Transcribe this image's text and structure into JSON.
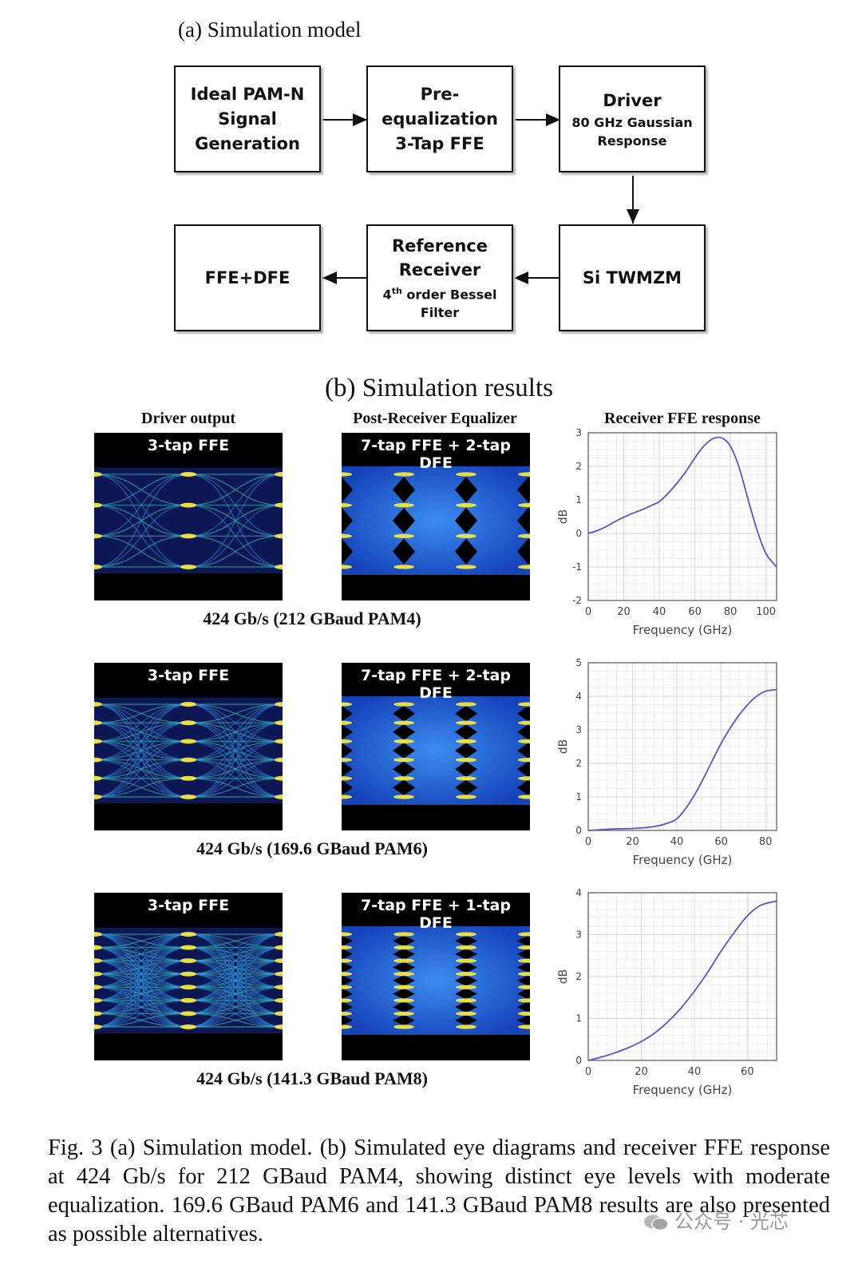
{
  "section_a": {
    "title": "(a) Simulation model",
    "blocks": {
      "pam": [
        "Ideal PAM-N",
        "Signal",
        "Generation"
      ],
      "preeq": [
        "Pre-",
        "equalization",
        "3-Tap FFE"
      ],
      "driver_title": "Driver",
      "driver_sub": [
        "80 GHz Gaussian",
        "Response"
      ],
      "twmzm": "Si TWMZM",
      "refrx_title": [
        "Reference",
        "Receiver"
      ],
      "refrx_order": "4",
      "refrx_sup": "th",
      "refrx_sub1": " order Bessel",
      "refrx_sub2": "Filter",
      "ffedfe": "FFE+DFE"
    }
  },
  "section_b": {
    "title": "(b) Simulation results",
    "col_heads": [
      "Driver output",
      "Post-Receiver Equalizer",
      "Receiver FFE response"
    ],
    "rows": [
      {
        "driver_label": "3-tap FFE",
        "eq_label": "7-tap FFE + 2-tap DFE",
        "caption": "424 Gb/s (212 GBaud PAM4)",
        "levels": 4
      },
      {
        "driver_label": "3-tap FFE",
        "eq_label": "7-tap FFE + 2-tap DFE",
        "caption": "424 Gb/s (169.6 GBaud PAM6)",
        "levels": 6
      },
      {
        "driver_label": "3-tap FFE",
        "eq_label": "7-tap FFE + 1-tap DFE",
        "caption": "424 Gb/s (141.3 GBaud PAM8)",
        "levels": 8
      }
    ]
  },
  "chart_data": [
    {
      "type": "line",
      "title": "Receiver FFE response",
      "xlabel": "Frequency (GHz)",
      "ylabel": "dB",
      "xlim": [
        0,
        106
      ],
      "ylim": [
        -2,
        3
      ],
      "xticks": [
        0,
        20,
        40,
        60,
        80,
        100
      ],
      "yticks": [
        -2,
        -1,
        0,
        1,
        2,
        3
      ],
      "grid": true,
      "x": [
        0,
        5,
        10,
        15,
        20,
        25,
        30,
        35,
        40,
        45,
        50,
        55,
        60,
        65,
        70,
        75,
        80,
        85,
        90,
        95,
        100,
        106
      ],
      "y": [
        0.0,
        0.08,
        0.2,
        0.35,
        0.48,
        0.6,
        0.7,
        0.82,
        0.95,
        1.2,
        1.5,
        1.85,
        2.25,
        2.6,
        2.82,
        2.85,
        2.6,
        1.95,
        1.0,
        0.1,
        -0.6,
        -1.0
      ]
    },
    {
      "type": "line",
      "xlabel": "Frequency (GHz)",
      "ylabel": "dB",
      "xlim": [
        0,
        85
      ],
      "ylim": [
        0,
        5
      ],
      "xticks": [
        0,
        20,
        40,
        60,
        80
      ],
      "yticks": [
        0,
        1,
        2,
        3,
        4,
        5
      ],
      "grid": true,
      "x": [
        0,
        5,
        10,
        15,
        20,
        25,
        30,
        35,
        40,
        45,
        50,
        55,
        60,
        65,
        70,
        75,
        80,
        85
      ],
      "y": [
        0.0,
        0.02,
        0.04,
        0.05,
        0.06,
        0.08,
        0.12,
        0.2,
        0.35,
        0.75,
        1.3,
        1.95,
        2.6,
        3.15,
        3.6,
        3.95,
        4.15,
        4.2
      ]
    },
    {
      "type": "line",
      "xlabel": "Frequency (GHz)",
      "ylabel": "dB",
      "xlim": [
        0,
        71
      ],
      "ylim": [
        0,
        4
      ],
      "xticks": [
        0,
        20,
        40,
        60
      ],
      "yticks": [
        0,
        1,
        2,
        3,
        4
      ],
      "grid": true,
      "x": [
        0,
        5,
        10,
        15,
        20,
        25,
        30,
        35,
        40,
        45,
        50,
        55,
        60,
        65,
        71
      ],
      "y": [
        0.0,
        0.08,
        0.18,
        0.3,
        0.45,
        0.65,
        0.92,
        1.25,
        1.65,
        2.1,
        2.6,
        3.05,
        3.45,
        3.7,
        3.8
      ]
    }
  ],
  "caption": {
    "text": "Fig. 3   (a) Simulation model. (b) Simulated eye diagrams and receiver FFE response at 424 Gb/s for 212 GBaud PAM4, showing distinct eye levels with moderate equalization. 169.6 GBaud PAM6 and 141.3 GBaud PAM8 results are also presented as possible alternatives."
  },
  "watermark": {
    "text": "公众号 · 光芯"
  },
  "colors": {
    "curve": "#5555cc",
    "eye_yellow": "#f2e640",
    "eye_cyan": "#33c8c8",
    "eye_blue": "#1a5ad8"
  }
}
